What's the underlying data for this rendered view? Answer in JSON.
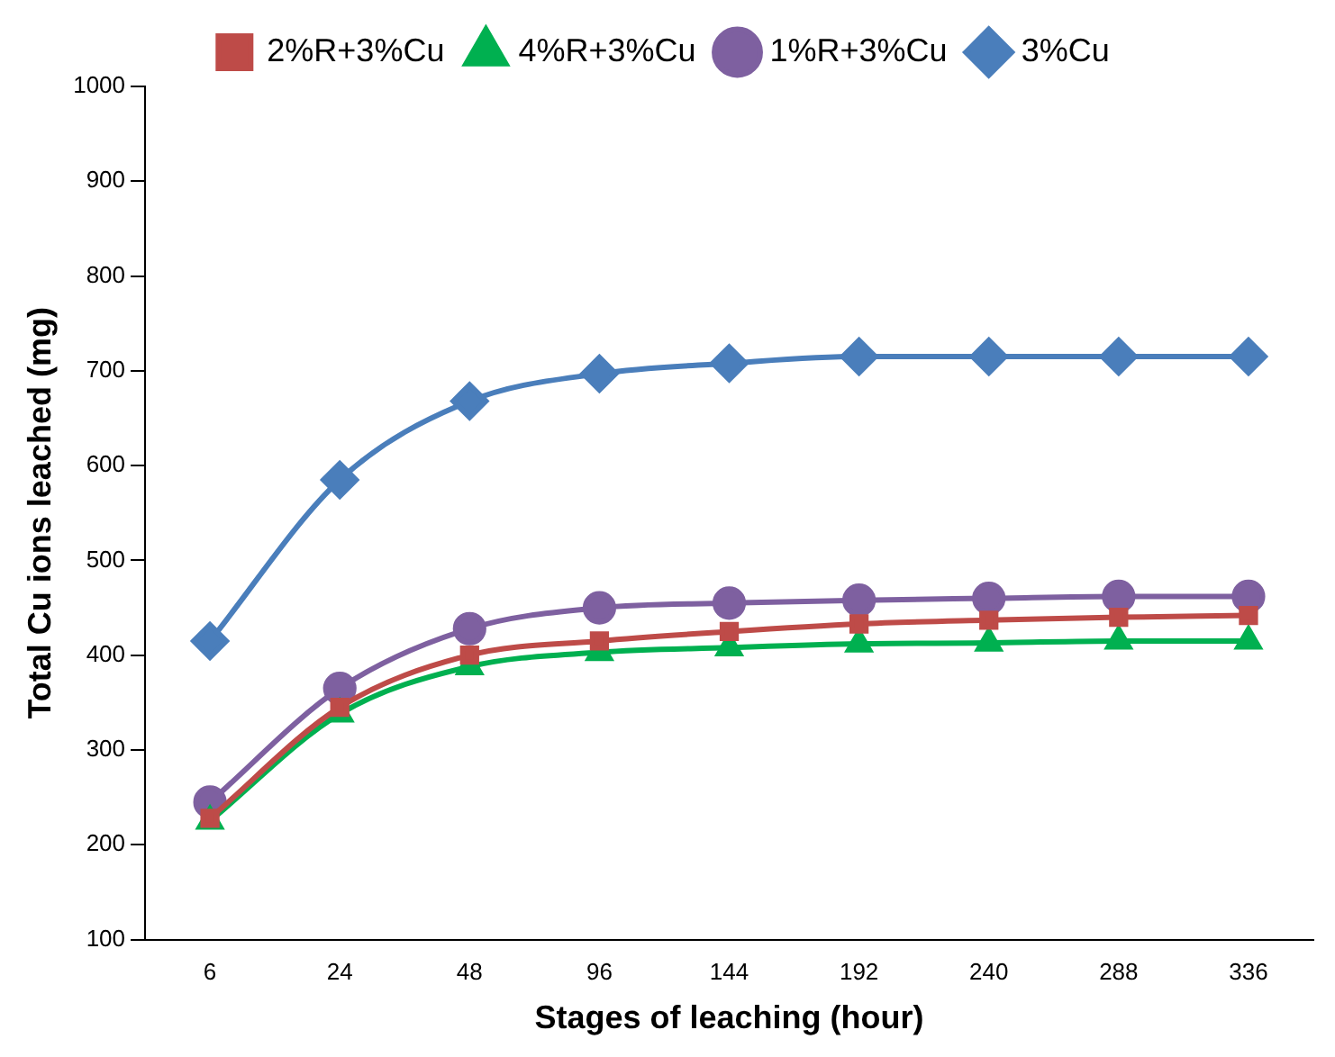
{
  "chart_data": {
    "type": "line",
    "xlabel": "Stages of leaching (hour)",
    "ylabel": "Total Cu ions leached (mg)",
    "categories": [
      "6",
      "24",
      "48",
      "96",
      "144",
      "192",
      "240",
      "288",
      "336"
    ],
    "ylim": [
      100,
      1000
    ],
    "yticks": [
      100,
      200,
      300,
      400,
      500,
      600,
      700,
      800,
      900,
      1000
    ],
    "grid": false,
    "legend": "top",
    "series": [
      {
        "name": "3%Cu",
        "color": "#4a7ebb",
        "marker": "diamond",
        "values": [
          415,
          585,
          668,
          697,
          708,
          715,
          715,
          715,
          715
        ]
      },
      {
        "name": "1%R+3%Cu",
        "color": "#7e60a0",
        "marker": "circle",
        "values": [
          245,
          365,
          428,
          450,
          455,
          458,
          460,
          462,
          462
        ]
      },
      {
        "name": "4%R+3%Cu",
        "color": "#00b050",
        "marker": "triangle",
        "values": [
          225,
          338,
          388,
          403,
          408,
          412,
          413,
          415,
          415
        ]
      },
      {
        "name": "2%R+3%Cu",
        "color": "#be4b48",
        "marker": "square",
        "values": [
          228,
          345,
          400,
          415,
          425,
          433,
          437,
          440,
          442
        ]
      }
    ]
  }
}
